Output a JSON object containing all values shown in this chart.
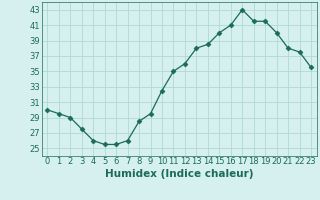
{
  "x": [
    0,
    1,
    2,
    3,
    4,
    5,
    6,
    7,
    8,
    9,
    10,
    11,
    12,
    13,
    14,
    15,
    16,
    17,
    18,
    19,
    20,
    21,
    22,
    23
  ],
  "y": [
    30,
    29.5,
    29,
    27.5,
    26,
    25.5,
    25.5,
    26,
    28.5,
    29.5,
    32.5,
    35,
    36,
    38,
    38.5,
    40,
    41,
    43,
    41.5,
    41.5,
    40,
    38,
    37.5,
    35.5
  ],
  "line_color": "#1a6b5a",
  "marker": "D",
  "marker_size": 2.5,
  "bg_color": "#d6f0f0",
  "grid_color": "#b0d8d8",
  "xlabel": "Humidex (Indice chaleur)",
  "xlim": [
    -0.5,
    23.5
  ],
  "ylim": [
    24,
    44
  ],
  "yticks": [
    25,
    27,
    29,
    31,
    33,
    35,
    37,
    39,
    41,
    43
  ],
  "xticks": [
    0,
    1,
    2,
    3,
    4,
    5,
    6,
    7,
    8,
    9,
    10,
    11,
    12,
    13,
    14,
    15,
    16,
    17,
    18,
    19,
    20,
    21,
    22,
    23
  ],
  "tick_fontsize": 6,
  "xlabel_fontsize": 7.5
}
